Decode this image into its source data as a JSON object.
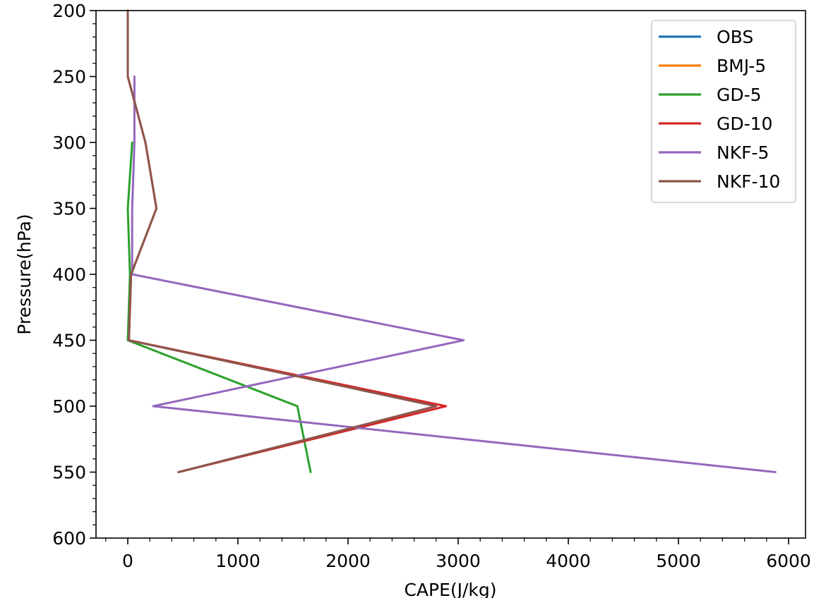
{
  "chart_data": {
    "type": "line",
    "xlabel": "CAPE(J/kg)",
    "ylabel": "Pressure(hPa)",
    "xlim": [
      -280,
      6150
    ],
    "ylim": [
      600,
      200
    ],
    "y_inverted": true,
    "xticks": [
      0,
      1000,
      2000,
      3000,
      4000,
      5000,
      6000
    ],
    "yticks": [
      200,
      250,
      300,
      350,
      400,
      450,
      500,
      550,
      600
    ],
    "legend_position": "top-right",
    "grid": false,
    "series": [
      {
        "name": "OBS",
        "color": "#1f77b4",
        "points": []
      },
      {
        "name": "BMJ-5",
        "color": "#ff7f0e",
        "points": []
      },
      {
        "name": "GD-5",
        "color": "#2ca02c",
        "points": [
          [
            40,
            300
          ],
          [
            0,
            350
          ],
          [
            20,
            400
          ],
          [
            0,
            450
          ],
          [
            1540,
            500
          ],
          [
            1660,
            550
          ]
        ]
      },
      {
        "name": "GD-10",
        "color": "#d62728",
        "points": [
          [
            0,
            200
          ],
          [
            0,
            250
          ],
          [
            160,
            300
          ],
          [
            260,
            350
          ],
          [
            30,
            400
          ],
          [
            10,
            450
          ],
          [
            2890,
            500
          ],
          [
            460,
            550
          ]
        ]
      },
      {
        "name": "NKF-5",
        "color": "#9467bd",
        "points": [
          [
            60,
            250
          ],
          [
            60,
            300
          ],
          [
            40,
            350
          ],
          [
            40,
            400
          ],
          [
            3050,
            450
          ],
          [
            230,
            500
          ],
          [
            5880,
            550
          ]
        ]
      },
      {
        "name": "NKF-10",
        "color": "#8c564b",
        "points": [
          [
            0,
            200
          ],
          [
            0,
            250
          ],
          [
            160,
            300
          ],
          [
            260,
            350
          ],
          [
            30,
            400
          ],
          [
            10,
            450
          ],
          [
            2800,
            500
          ],
          [
            460,
            550
          ]
        ]
      }
    ]
  }
}
